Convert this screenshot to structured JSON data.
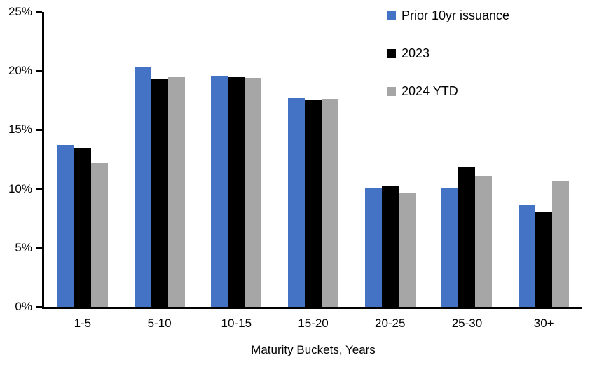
{
  "chart_data": {
    "type": "bar",
    "title": "",
    "categories": [
      "1-5",
      "5-10",
      "10-15",
      "15-20",
      "20-25",
      "25-30",
      "30+"
    ],
    "series": [
      {
        "name": "Prior 10yr issuance",
        "color": "#4472C4",
        "values": [
          13.7,
          20.3,
          19.6,
          17.7,
          10.1,
          10.1,
          8.6
        ]
      },
      {
        "name": "2023",
        "color": "#000000",
        "values": [
          13.5,
          19.3,
          19.5,
          17.5,
          10.2,
          11.9,
          8.1
        ]
      },
      {
        "name": "2024 YTD",
        "color": "#A6A6A6",
        "values": [
          12.2,
          19.5,
          19.4,
          17.6,
          9.6,
          11.1,
          10.7
        ]
      }
    ],
    "xlabel": "Maturity Buckets, Years",
    "ylabel": "",
    "ylim": [
      0,
      25
    ],
    "yticks": [
      0,
      5,
      10,
      15,
      20,
      25
    ],
    "ytick_suffix": "%",
    "grid": false,
    "legend_position": "top-right",
    "axis_color": "#000000",
    "background": "#ffffff"
  }
}
